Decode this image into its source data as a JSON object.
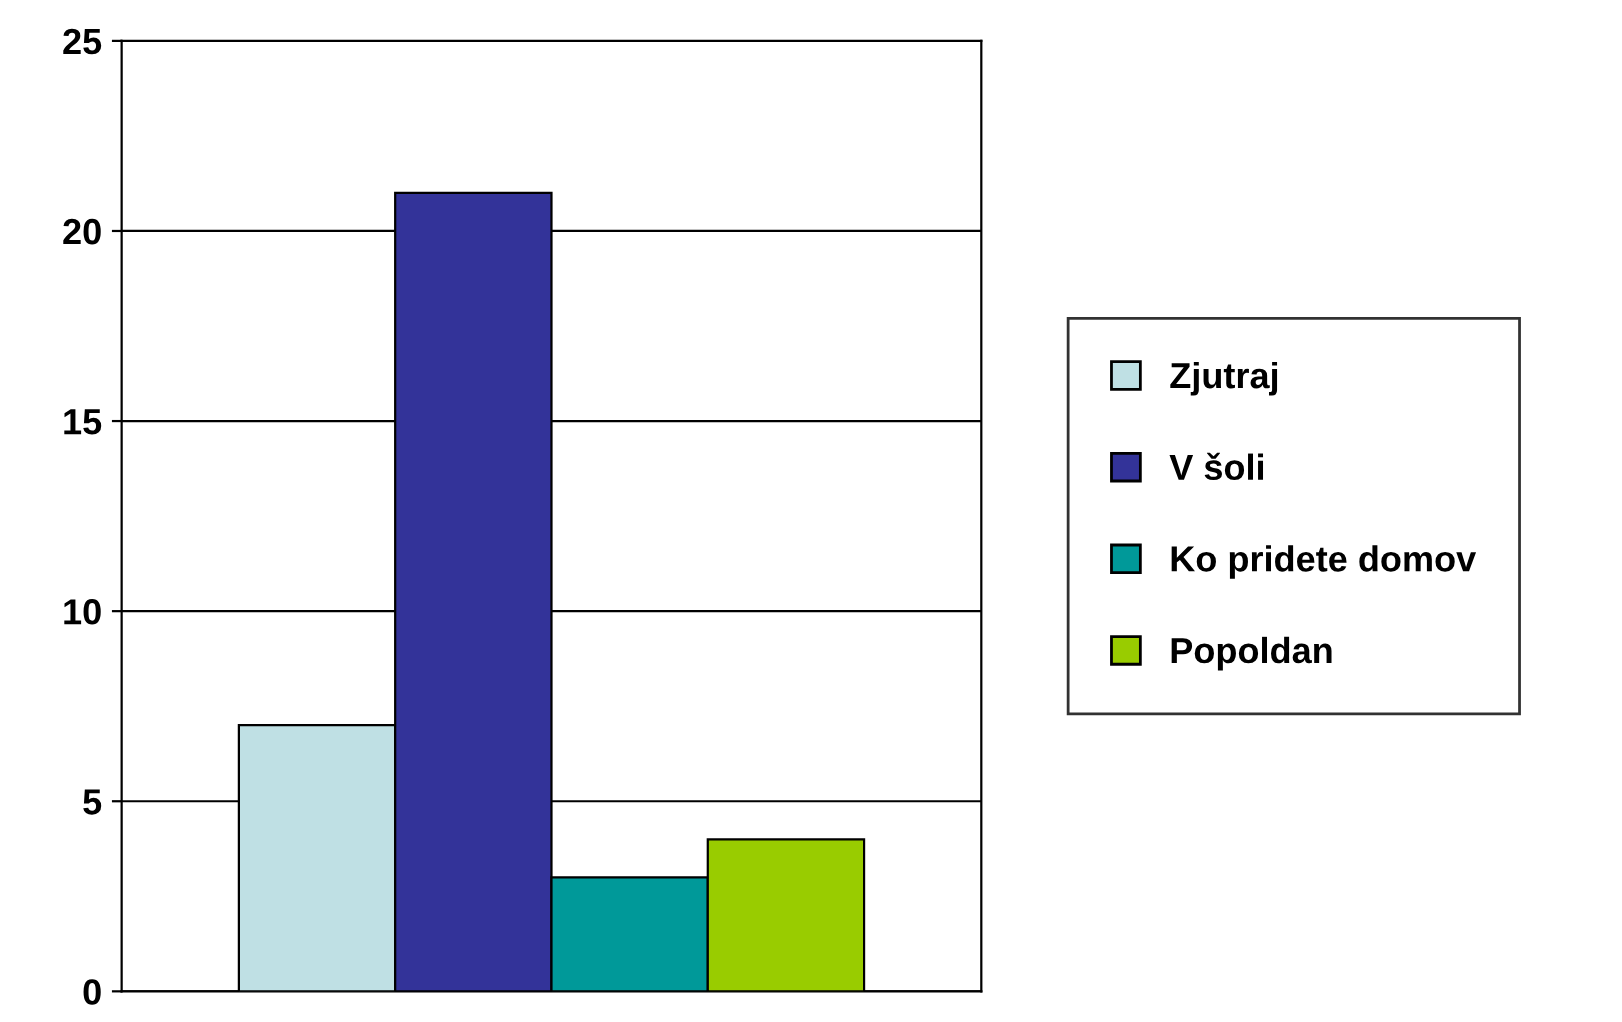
{
  "chart_data": {
    "type": "bar",
    "categories": [
      null
    ],
    "series": [
      {
        "name": "Zjutraj",
        "color": "#bfe0e4",
        "values": [
          7
        ]
      },
      {
        "name": "V šoli",
        "color": "#333399",
        "values": [
          21
        ]
      },
      {
        "name": "Ko pridete domov",
        "color": "#009999",
        "values": [
          3
        ]
      },
      {
        "name": "Popoldan",
        "color": "#99cc00",
        "values": [
          4
        ]
      }
    ],
    "ylim": [
      0,
      25
    ],
    "yticks": [
      0,
      5,
      10,
      15,
      20,
      25
    ],
    "grid": "y",
    "legend": "right"
  }
}
